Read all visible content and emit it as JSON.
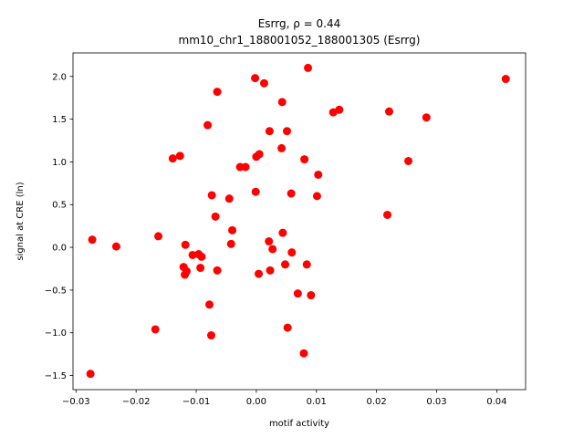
{
  "chart_data": {
    "type": "scatter",
    "title_line1": "Esrrg, ρ = 0.44",
    "title_line2": "mm10_chr1_188001052_188001305 (Esrrg)",
    "xlabel": "motif activity",
    "ylabel": "signal at CRE (ln)",
    "xlim": [
      -0.0305,
      0.0448
    ],
    "ylim": [
      -1.665,
      2.275
    ],
    "xticks": [
      -0.03,
      -0.02,
      -0.01,
      0.0,
      0.01,
      0.02,
      0.03,
      0.04
    ],
    "xtick_labels": [
      "−0.03",
      "−0.02",
      "−0.01",
      "0.00",
      "0.01",
      "0.02",
      "0.03",
      "0.04"
    ],
    "yticks": [
      -1.5,
      -1.0,
      -0.5,
      0.0,
      0.5,
      1.0,
      1.5,
      2.0
    ],
    "ytick_labels": [
      "−1.5",
      "−1.0",
      "−0.5",
      "0.0",
      "0.5",
      "1.0",
      "1.5",
      "2.0"
    ],
    "grid": false,
    "marker_color": "#ff0000",
    "points": [
      {
        "x": -0.0276,
        "y": -1.48
      },
      {
        "x": -0.0273,
        "y": 0.09
      },
      {
        "x": -0.0233,
        "y": 0.01
      },
      {
        "x": -0.0168,
        "y": -0.96
      },
      {
        "x": -0.0163,
        "y": 0.13
      },
      {
        "x": -0.0139,
        "y": 1.04
      },
      {
        "x": -0.0127,
        "y": 1.07
      },
      {
        "x": -0.0121,
        "y": -0.23
      },
      {
        "x": -0.0119,
        "y": -0.32
      },
      {
        "x": -0.0118,
        "y": 0.03
      },
      {
        "x": -0.0116,
        "y": -0.28
      },
      {
        "x": -0.0106,
        "y": -0.09
      },
      {
        "x": -0.0096,
        "y": -0.08
      },
      {
        "x": -0.0093,
        "y": -0.24
      },
      {
        "x": -0.0091,
        "y": -0.11
      },
      {
        "x": -0.0081,
        "y": 1.43
      },
      {
        "x": -0.0078,
        "y": -0.67
      },
      {
        "x": -0.0075,
        "y": -1.03
      },
      {
        "x": -0.0074,
        "y": 0.61
      },
      {
        "x": -0.0068,
        "y": 0.36
      },
      {
        "x": -0.0065,
        "y": 1.82
      },
      {
        "x": -0.0065,
        "y": -0.27
      },
      {
        "x": -0.0045,
        "y": 0.57
      },
      {
        "x": -0.0042,
        "y": 0.04
      },
      {
        "x": -0.004,
        "y": 0.2
      },
      {
        "x": -0.0027,
        "y": 0.94
      },
      {
        "x": -0.0018,
        "y": 0.94
      },
      {
        "x": -0.0002,
        "y": 1.98
      },
      {
        "x": -0.0001,
        "y": 0.65
      },
      {
        "x": 0.0,
        "y": 1.06
      },
      {
        "x": 0.0004,
        "y": -0.31
      },
      {
        "x": 0.0005,
        "y": 1.09
      },
      {
        "x": 0.0013,
        "y": 1.92
      },
      {
        "x": 0.0021,
        "y": 0.07
      },
      {
        "x": 0.0022,
        "y": 1.36
      },
      {
        "x": 0.0023,
        "y": -0.27
      },
      {
        "x": 0.0027,
        "y": -0.02
      },
      {
        "x": 0.0042,
        "y": 1.16
      },
      {
        "x": 0.0043,
        "y": 1.7
      },
      {
        "x": 0.0044,
        "y": 0.17
      },
      {
        "x": 0.0048,
        "y": -0.2
      },
      {
        "x": 0.0051,
        "y": 1.36
      },
      {
        "x": 0.0052,
        "y": -0.94
      },
      {
        "x": 0.0058,
        "y": 0.63
      },
      {
        "x": 0.0059,
        "y": -0.06
      },
      {
        "x": 0.0069,
        "y": -0.54
      },
      {
        "x": 0.0079,
        "y": -1.24
      },
      {
        "x": 0.008,
        "y": 1.03
      },
      {
        "x": 0.0084,
        "y": -0.2
      },
      {
        "x": 0.0086,
        "y": 2.1
      },
      {
        "x": 0.0091,
        "y": -0.56
      },
      {
        "x": 0.0101,
        "y": 0.6
      },
      {
        "x": 0.0103,
        "y": 0.85
      },
      {
        "x": 0.0128,
        "y": 1.58
      },
      {
        "x": 0.0138,
        "y": 1.61
      },
      {
        "x": 0.0218,
        "y": 0.38
      },
      {
        "x": 0.0221,
        "y": 1.59
      },
      {
        "x": 0.0253,
        "y": 1.01
      },
      {
        "x": 0.0283,
        "y": 1.52
      },
      {
        "x": 0.0415,
        "y": 1.97
      }
    ]
  }
}
